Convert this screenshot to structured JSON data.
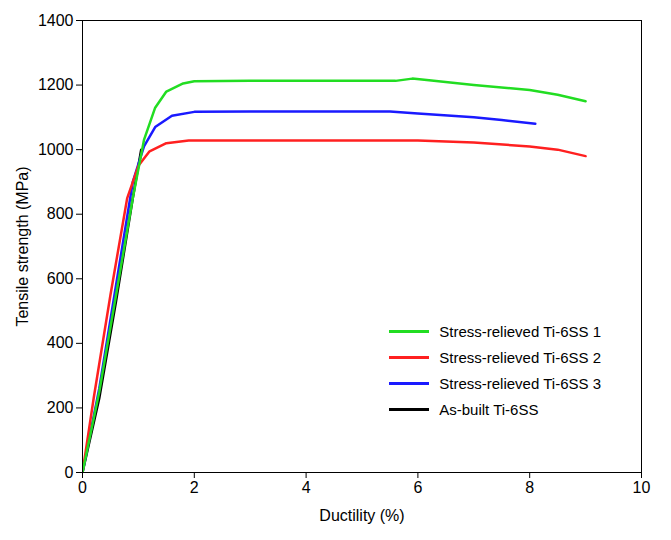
{
  "chart_data": {
    "type": "line",
    "x_label": "Ductility (%)",
    "y_label": "Tensile strength (MPa)",
    "xlim": [
      0,
      10
    ],
    "xticks": [
      0,
      2,
      4,
      6,
      8,
      10
    ],
    "ylim": [
      0,
      1400
    ],
    "yticks": [
      0,
      200,
      400,
      600,
      800,
      1000,
      1200,
      1400
    ],
    "grid": false,
    "legend": "lower right",
    "series": [
      {
        "name": "Stress-relieved Ti-6SS 1",
        "color": "#22dd22",
        "x": [
          0,
          0.3,
          0.6,
          0.9,
          1.1,
          1.3,
          1.5,
          1.8,
          2,
          3,
          4,
          5,
          5.6,
          5.9,
          6.2,
          7,
          8,
          8.5,
          9
        ],
        "values": [
          0,
          250,
          550,
          850,
          1030,
          1130,
          1180,
          1205,
          1212,
          1213,
          1213,
          1213,
          1213,
          1220,
          1215,
          1200,
          1185,
          1170,
          1150
        ]
      },
      {
        "name": "Stress-relieved Ti-6SS 2",
        "color": "#ff2020",
        "x": [
          0,
          0.2,
          0.5,
          0.8,
          1,
          1.2,
          1.5,
          1.9,
          3,
          5,
          6,
          7,
          8,
          8.5,
          9
        ],
        "values": [
          0,
          230,
          550,
          850,
          950,
          995,
          1020,
          1028,
          1028,
          1028,
          1028,
          1022,
          1010,
          1000,
          980
        ]
      },
      {
        "name": "Stress-relieved Ti-6SS 3",
        "color": "#1a1aff",
        "x": [
          0,
          0.3,
          0.6,
          0.9,
          1.1,
          1.3,
          1.6,
          2,
          3,
          4,
          5.5,
          6,
          7,
          7.5,
          8.1
        ],
        "values": [
          0,
          260,
          580,
          900,
          1010,
          1070,
          1105,
          1117,
          1118,
          1118,
          1118,
          1112,
          1100,
          1092,
          1080
        ]
      },
      {
        "name": "As-built Ti-6SS",
        "color": "#000000",
        "x": [
          0,
          0.3,
          0.6,
          0.9,
          1.05
        ],
        "values": [
          0,
          230,
          530,
          850,
          1000
        ]
      }
    ]
  }
}
